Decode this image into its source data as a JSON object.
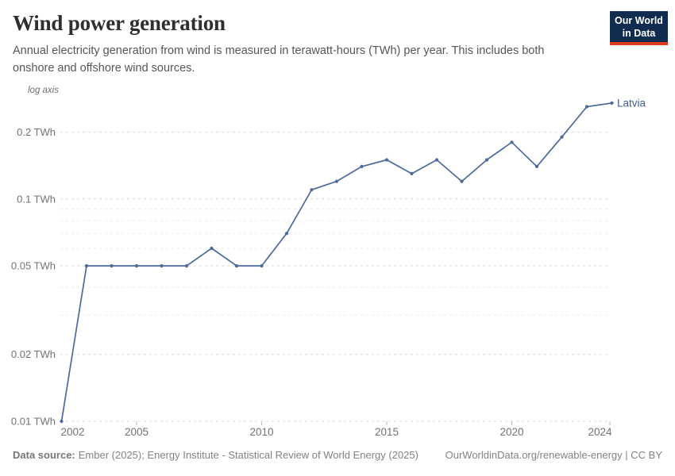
{
  "header": {
    "title": "Wind power generation",
    "subtitle": "Annual electricity generation from wind is measured in terawatt-hours (TWh) per year. This includes both onshore and offshore wind sources.",
    "logo": {
      "line1": "Our World",
      "line2": "in Data"
    }
  },
  "chart_data": {
    "type": "line",
    "title": "Wind power generation",
    "unit": "TWh",
    "y_scale": "log",
    "scale_note": "log axis",
    "grid": true,
    "legend_position": "end-of-line label",
    "x": [
      2002,
      2003,
      2004,
      2005,
      2006,
      2007,
      2008,
      2009,
      2010,
      2011,
      2012,
      2013,
      2014,
      2015,
      2016,
      2017,
      2018,
      2019,
      2020,
      2021,
      2022,
      2023,
      2024
    ],
    "series": [
      {
        "name": "Latvia",
        "values": [
          0.01,
          0.05,
          0.05,
          0.05,
          0.05,
          0.05,
          0.06,
          0.05,
          0.05,
          0.07,
          0.11,
          0.12,
          0.14,
          0.15,
          0.13,
          0.15,
          0.12,
          0.15,
          0.18,
          0.14,
          0.19,
          0.26,
          0.27
        ]
      }
    ],
    "ylim": [
      0.01,
      0.3
    ],
    "y_ticks": [
      {
        "value": 0.2,
        "label": "0.2 TWh"
      },
      {
        "value": 0.1,
        "label": "0.1 TWh"
      },
      {
        "value": 0.05,
        "label": "0.05 TWh"
      },
      {
        "value": 0.02,
        "label": "0.02 TWh"
      },
      {
        "value": 0.01,
        "label": "0.01 TWh"
      }
    ],
    "y_minor_gridlines": [
      0.09,
      0.08,
      0.07,
      0.06,
      0.04,
      0.03
    ],
    "x_ticks": [
      2002,
      2005,
      2010,
      2015,
      2020,
      2024
    ]
  },
  "footer": {
    "source_label": "Data source:",
    "source_text": "Ember (2025); Energy Institute - Statistical Review of World Energy (2025)",
    "link_text": "OurWorldinData.org/renewable-energy | CC BY"
  },
  "colors": {
    "line": "#4C6A9C",
    "end_label": "#3D5C95",
    "grid_major": "#D9D9D9",
    "grid_minor": "#EBEBEB",
    "tick_text": "#737373",
    "axis_note": "#6E6E6E",
    "logo_bg": "#102D4F",
    "logo_accent": "#DB3A1B"
  }
}
